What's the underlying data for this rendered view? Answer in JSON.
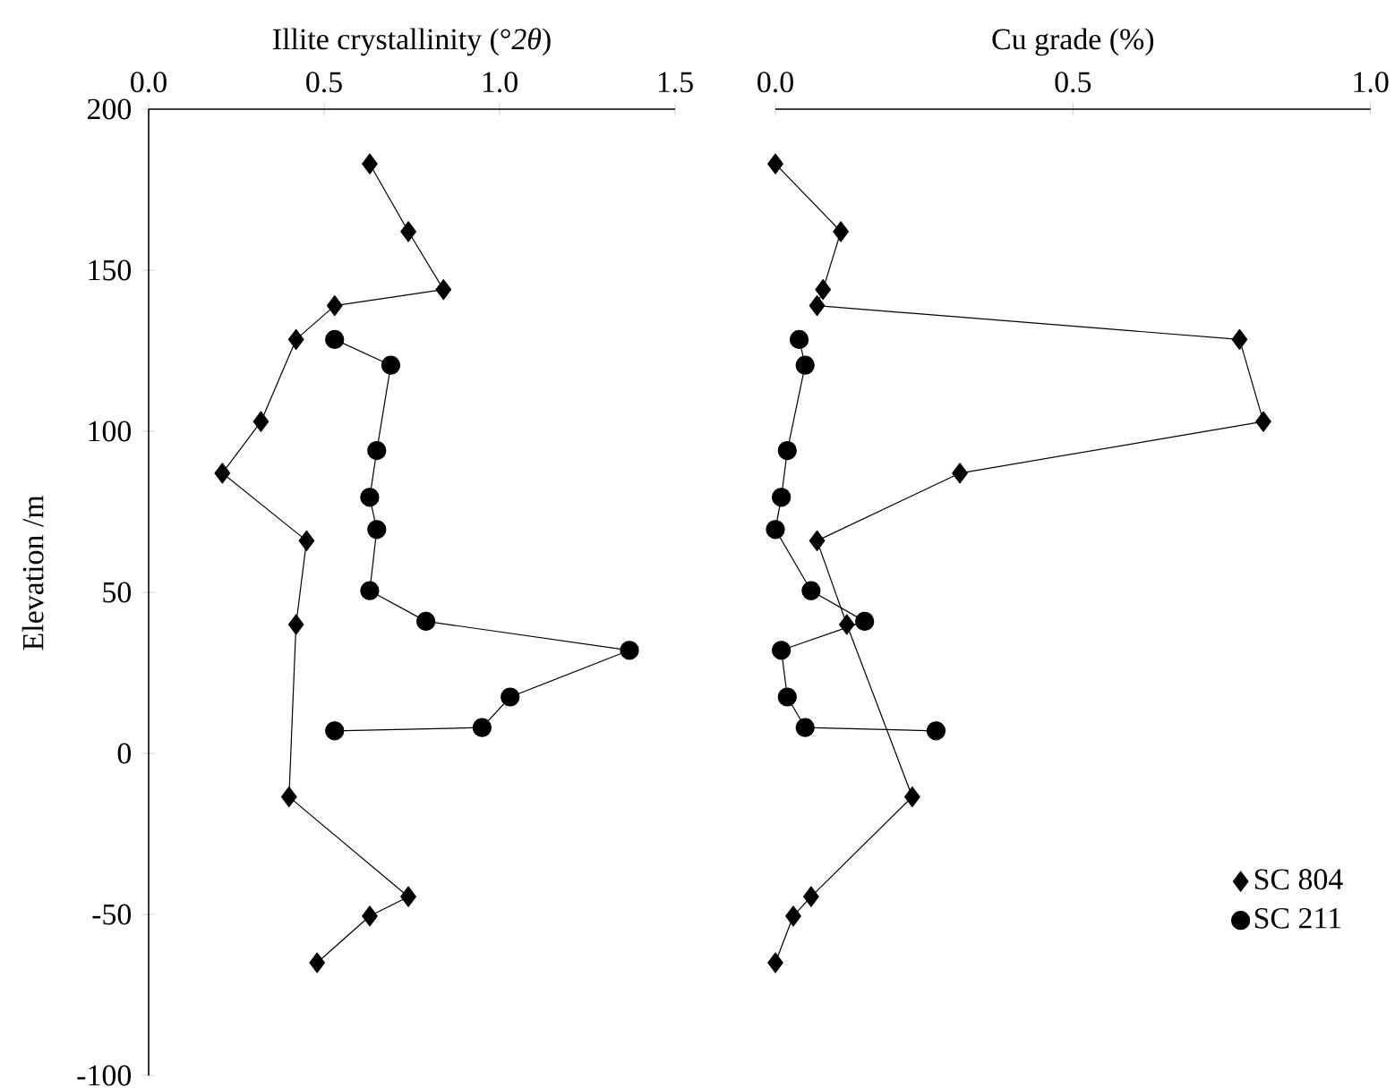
{
  "chart_data": [
    {
      "type": "line",
      "xlabel": "Illite crystallinity (°*2θ*)",
      "ylabel": "Elevation /m",
      "xlim": [
        0,
        1.5
      ],
      "xticks": [
        {
          "value": 0,
          "label": "0.0"
        },
        {
          "value": 0.5,
          "label": "0.5"
        },
        {
          "value": 1.0,
          "label": "1.0"
        },
        {
          "value": 1.5,
          "label": "1.5"
        }
      ],
      "ylim": [
        -100,
        200
      ],
      "yticks": [
        -100,
        -50,
        0,
        50,
        100,
        150,
        200
      ],
      "grid": false,
      "legend": false,
      "line_style": "solid",
      "series": [
        {
          "color": "#000000",
          "marker": "diamond",
          "x": [
            0.63,
            0.74,
            0.84,
            0.53,
            0.42,
            0.32,
            0.21,
            0.45,
            0.42,
            0.4,
            0.74,
            0.63,
            0.48
          ],
          "values": [
            183,
            162,
            144,
            139,
            128.5,
            103,
            87,
            66,
            40,
            -13.5,
            -44.5,
            -50.5,
            -65
          ]
        },
        {
          "color": "#000000",
          "marker": "circle",
          "x": [
            0.53,
            0.69,
            0.65,
            0.63,
            0.65,
            0.63,
            0.79,
            1.37,
            1.03,
            0.95,
            0.53
          ],
          "values": [
            128.5,
            120.5,
            94,
            79.5,
            69.5,
            50.5,
            41,
            32,
            17.5,
            8,
            7
          ]
        }
      ]
    },
    {
      "type": "line",
      "xlabel": "Cu grade (%)",
      "xlim": [
        0,
        1.0
      ],
      "xticks": [
        {
          "value": 0,
          "label": "0.0"
        },
        {
          "value": 0.5,
          "label": "0.5"
        },
        {
          "value": 1.0,
          "label": "1.0"
        }
      ],
      "ylim": [
        -100,
        200
      ],
      "tick_labels": "x",
      "grid": false,
      "legend": "bottom right",
      "line_style": "solid",
      "series": [
        {
          "name": "SC 804",
          "color": "#000000",
          "marker": "diamond",
          "x": [
            0.0,
            0.11,
            0.08,
            0.07,
            0.78,
            0.82,
            0.31,
            0.07,
            0.12,
            0.23,
            0.06,
            0.03,
            0.0
          ],
          "values": [
            183,
            162,
            144,
            139,
            128.5,
            103,
            87,
            66,
            40,
            -13.5,
            -44.5,
            -50.5,
            -65
          ]
        },
        {
          "name": "SC 211",
          "color": "#000000",
          "marker": "circle",
          "x": [
            0.04,
            0.05,
            0.02,
            0.01,
            0.0,
            0.06,
            0.15,
            0.01,
            0.02,
            0.05,
            0.27
          ],
          "values": [
            128.5,
            120.5,
            94,
            79.5,
            69.5,
            50.5,
            41,
            32,
            17.5,
            8,
            7
          ]
        }
      ]
    }
  ]
}
